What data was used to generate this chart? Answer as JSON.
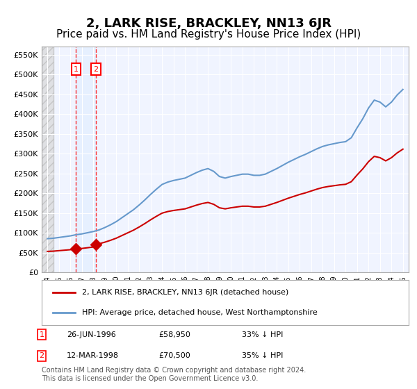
{
  "title": "2, LARK RISE, BRACKLEY, NN13 6JR",
  "subtitle": "Price paid vs. HM Land Registry's House Price Index (HPI)",
  "title_fontsize": 13,
  "subtitle_fontsize": 11,
  "background_color": "#ffffff",
  "plot_bg_color": "#f0f4ff",
  "hatch_color": "#cccccc",
  "hatch_bg": "#e8e8e8",
  "ylim": [
    0,
    570000
  ],
  "yticks": [
    0,
    50000,
    100000,
    150000,
    200000,
    250000,
    300000,
    350000,
    400000,
    450000,
    500000,
    550000
  ],
  "ytick_labels": [
    "£0",
    "£50K",
    "£100K",
    "£150K",
    "£200K",
    "£250K",
    "£300K",
    "£350K",
    "£400K",
    "£450K",
    "£500K",
    "£550K"
  ],
  "xlim_start": 1993.5,
  "xlim_end": 2025.5,
  "xticks": [
    1994,
    1995,
    1996,
    1997,
    1998,
    1999,
    2000,
    2001,
    2002,
    2003,
    2004,
    2005,
    2006,
    2007,
    2008,
    2009,
    2010,
    2011,
    2012,
    2013,
    2014,
    2015,
    2016,
    2017,
    2018,
    2019,
    2020,
    2021,
    2022,
    2023,
    2024,
    2025
  ],
  "hpi_years": [
    1994,
    1994.5,
    1995,
    1995.5,
    1996,
    1996.5,
    1997,
    1997.5,
    1998,
    1998.5,
    1999,
    1999.5,
    2000,
    2000.5,
    2001,
    2001.5,
    2002,
    2002.5,
    2003,
    2003.5,
    2004,
    2004.5,
    2005,
    2005.5,
    2006,
    2006.5,
    2007,
    2007.5,
    2008,
    2008.5,
    2009,
    2009.5,
    2010,
    2010.5,
    2011,
    2011.5,
    2012,
    2012.5,
    2013,
    2013.5,
    2014,
    2014.5,
    2015,
    2015.5,
    2016,
    2016.5,
    2017,
    2017.5,
    2018,
    2018.5,
    2019,
    2019.5,
    2020,
    2020.5,
    2021,
    2021.5,
    2022,
    2022.5,
    2023,
    2023.5,
    2024,
    2024.5,
    2025
  ],
  "hpi_values": [
    85000,
    86000,
    88000,
    90000,
    92000,
    95000,
    97000,
    100000,
    103000,
    107000,
    113000,
    120000,
    128000,
    138000,
    148000,
    158000,
    170000,
    183000,
    197000,
    210000,
    222000,
    228000,
    232000,
    235000,
    238000,
    245000,
    252000,
    258000,
    262000,
    255000,
    242000,
    238000,
    242000,
    245000,
    248000,
    248000,
    245000,
    245000,
    248000,
    255000,
    262000,
    270000,
    278000,
    285000,
    292000,
    298000,
    305000,
    312000,
    318000,
    322000,
    325000,
    328000,
    330000,
    340000,
    365000,
    388000,
    415000,
    435000,
    430000,
    418000,
    430000,
    448000,
    462000
  ],
  "price_paid_dates": [
    1996.49,
    1998.21
  ],
  "price_paid_values": [
    58950,
    70500
  ],
  "hpi_line_color": "#6699cc",
  "price_line_color": "#cc0000",
  "sale1_date": "26-JUN-1996",
  "sale1_price": "£58,950",
  "sale1_pct": "33% ↓ HPI",
  "sale2_date": "12-MAR-1998",
  "sale2_price": "£70,500",
  "sale2_pct": "35% ↓ HPI",
  "legend_line1": "2, LARK RISE, BRACKLEY, NN13 6JR (detached house)",
  "legend_line2": "HPI: Average price, detached house, West Northamptonshire",
  "footer": "Contains HM Land Registry data © Crown copyright and database right 2024.\nThis data is licensed under the Open Government Licence v3.0.",
  "hatch_end_year": 1994.0
}
